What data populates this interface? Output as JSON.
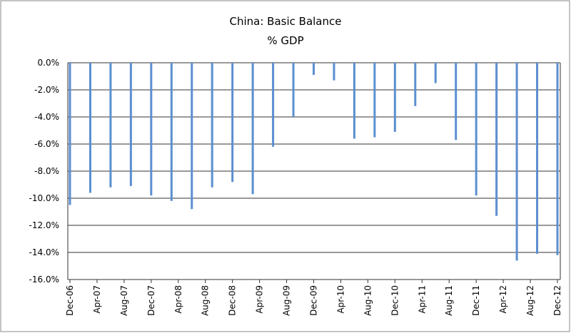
{
  "chart_data": {
    "type": "bar",
    "title": "China: Basic Balance",
    "subtitle": "% GDP",
    "x": [
      "2006-12",
      "2007-03",
      "2007-06",
      "2007-09",
      "2007-12",
      "2008-03",
      "2008-06",
      "2008-09",
      "2008-12",
      "2009-03",
      "2009-06",
      "2009-09",
      "2009-12",
      "2010-03",
      "2010-06",
      "2010-09",
      "2010-12",
      "2011-03",
      "2011-06",
      "2011-09",
      "2011-12",
      "2012-03",
      "2012-06",
      "2012-09",
      "2012-12"
    ],
    "values": [
      -10.5,
      -9.6,
      -9.2,
      -9.1,
      -9.8,
      -10.2,
      -10.8,
      -9.2,
      -8.8,
      -9.7,
      -6.2,
      -4.0,
      -0.9,
      -1.3,
      -5.6,
      -5.5,
      -5.1,
      -3.2,
      -1.5,
      -5.7,
      -9.8,
      -11.3,
      -14.6,
      -14.1,
      -14.2
    ],
    "color": "#5b8fd0",
    "ylim": [
      -16,
      0
    ],
    "yticks": [
      {
        "value": 0,
        "label": "0.0%"
      },
      {
        "value": -2,
        "label": "-2.0%"
      },
      {
        "value": -4,
        "label": "-4.0%"
      },
      {
        "value": -6,
        "label": "-6.0%"
      },
      {
        "value": -8,
        "label": "-8.0%"
      },
      {
        "value": -10,
        "label": "-10.0%"
      },
      {
        "value": -12,
        "label": "-12.0%"
      },
      {
        "value": -14,
        "label": "-14.0%"
      },
      {
        "value": -16,
        "label": "-16.0%"
      }
    ],
    "xticks": [
      {
        "value": "2006-12",
        "label": "Dec-06"
      },
      {
        "value": "2007-04",
        "label": "Apr-07"
      },
      {
        "value": "2007-08",
        "label": "Aug-07"
      },
      {
        "value": "2007-12",
        "label": "Dec-07"
      },
      {
        "value": "2008-04",
        "label": "Apr-08"
      },
      {
        "value": "2008-08",
        "label": "Aug-08"
      },
      {
        "value": "2008-12",
        "label": "Dec-08"
      },
      {
        "value": "2009-04",
        "label": "Apr-09"
      },
      {
        "value": "2009-08",
        "label": "Aug-09"
      },
      {
        "value": "2009-12",
        "label": "Dec-09"
      },
      {
        "value": "2010-04",
        "label": "Apr-10"
      },
      {
        "value": "2010-08",
        "label": "Aug-10"
      },
      {
        "value": "2010-12",
        "label": "Dec-10"
      },
      {
        "value": "2011-04",
        "label": "Apr-11"
      },
      {
        "value": "2011-08",
        "label": "Aug-11"
      },
      {
        "value": "2011-12",
        "label": "Dec-11"
      },
      {
        "value": "2012-04",
        "label": "Apr-12"
      },
      {
        "value": "2012-08",
        "label": "Aug-12"
      },
      {
        "value": "2012-12",
        "label": "Dec-12"
      }
    ],
    "grid": true
  }
}
